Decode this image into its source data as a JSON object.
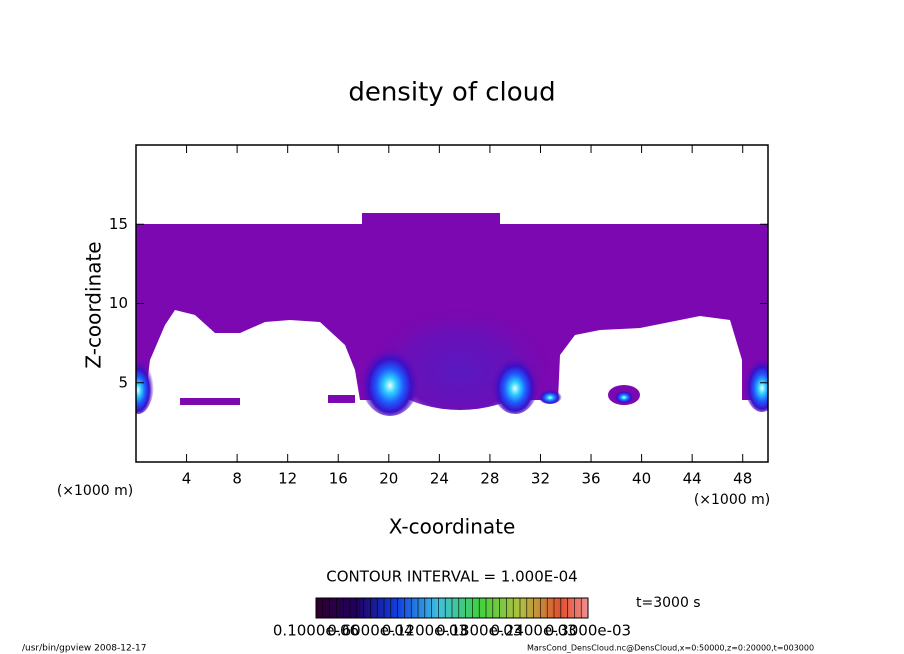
{
  "chart_data": {
    "type": "contour",
    "title": "density of cloud",
    "xlabel": "X-coordinate",
    "ylabel": "Z-coordinate",
    "x_unit": "(×1000 m)",
    "y_unit": "(×1000 m)",
    "xlim": [
      0,
      50
    ],
    "xticks": [
      4,
      8,
      12,
      16,
      20,
      24,
      28,
      32,
      36,
      40,
      44,
      48
    ],
    "ylim": [
      0,
      20
    ],
    "yticks": [
      5,
      10,
      15
    ],
    "contour_interval": "CONTOUR INTERVAL = 1.000E-04",
    "time": "t=3000 s",
    "colorbar_labels": [
      "0.1000e-06",
      "0.6000e-04",
      "0.1200e-03",
      "0.1800e-03",
      "0.2400e-03",
      "0.3000e-03"
    ],
    "footer_left": "/usr/bin/gpview  2008-12-17",
    "footer_right": "MarsCond_DensCloud.nc@DensCloud,x=0:50000,z=0:20000,t=003000"
  }
}
